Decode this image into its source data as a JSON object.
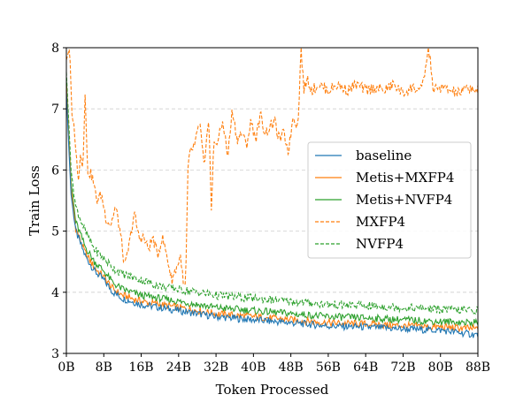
{
  "chart_data": {
    "type": "line",
    "title": "",
    "xlabel": "Token Processed",
    "ylabel": "Train Loss",
    "xlim": [
      0,
      88
    ],
    "ylim": [
      3,
      8
    ],
    "x_unit": "billion tokens",
    "x_ticks": [
      0,
      8,
      16,
      24,
      32,
      40,
      48,
      56,
      64,
      72,
      80,
      88
    ],
    "x_tick_labels": [
      "0B",
      "8B",
      "16B",
      "24B",
      "32B",
      "40B",
      "48B",
      "56B",
      "64B",
      "72B",
      "80B",
      "88B"
    ],
    "y_ticks": [
      3,
      4,
      5,
      6,
      7,
      8
    ],
    "y_tick_labels": [
      "3",
      "4",
      "5",
      "6",
      "7",
      "8"
    ],
    "grid": "horizontal dashed",
    "legend_position": "center-right",
    "series": [
      {
        "name": "baseline",
        "color": "#1f77b4",
        "style": "solid",
        "x": [
          0,
          0.5,
          1,
          2,
          3,
          4,
          6,
          8,
          10,
          12,
          16,
          20,
          24,
          28,
          32,
          40,
          48,
          56,
          64,
          72,
          80,
          88
        ],
        "values": [
          7.3,
          6.4,
          5.6,
          5.0,
          4.8,
          4.6,
          4.35,
          4.2,
          4.0,
          3.9,
          3.8,
          3.75,
          3.7,
          3.65,
          3.6,
          3.55,
          3.5,
          3.45,
          3.43,
          3.4,
          3.38,
          3.3
        ]
      },
      {
        "name": "Metis+MXFP4",
        "color": "#ff7f0e",
        "style": "solid",
        "x": [
          0,
          0.5,
          1,
          2,
          3,
          4,
          6,
          8,
          10,
          12,
          16,
          20,
          24,
          28,
          32,
          40,
          48,
          56,
          64,
          72,
          80,
          88
        ],
        "values": [
          7.4,
          6.5,
          5.7,
          5.05,
          4.85,
          4.65,
          4.4,
          4.25,
          4.05,
          3.95,
          3.85,
          3.8,
          3.75,
          3.7,
          3.65,
          3.6,
          3.55,
          3.5,
          3.48,
          3.45,
          3.43,
          3.4
        ]
      },
      {
        "name": "Metis+NVFP4",
        "color": "#2ca02c",
        "style": "solid",
        "x": [
          0,
          0.5,
          1,
          2,
          3,
          4,
          6,
          8,
          10,
          12,
          16,
          20,
          24,
          28,
          32,
          40,
          48,
          56,
          64,
          72,
          80,
          88
        ],
        "values": [
          7.5,
          6.6,
          5.8,
          5.15,
          4.95,
          4.75,
          4.5,
          4.35,
          4.15,
          4.05,
          3.95,
          3.9,
          3.85,
          3.8,
          3.75,
          3.7,
          3.65,
          3.6,
          3.58,
          3.55,
          3.52,
          3.5
        ]
      },
      {
        "name": "MXFP4",
        "color": "#ff7f0e",
        "style": "dashed",
        "x": [
          0,
          0.7,
          1.2,
          1.8,
          2.5,
          3.0,
          3.5,
          4.0,
          4.5,
          5.5,
          6.5,
          7.5,
          8.5,
          9.5,
          10.5,
          11.5,
          12.5,
          13.5,
          14.5,
          15.5,
          16.5,
          17.5,
          18.5,
          19.5,
          20.5,
          21.5,
          22.5,
          23.5,
          24.5,
          25.0,
          25.5,
          26.0,
          26.5,
          27.5,
          28.5,
          29.5,
          30.5,
          31.0,
          31.5,
          32.5,
          33.5,
          34.5,
          35.5,
          36.5,
          37.5,
          38.5,
          39.5,
          40.5,
          41.5,
          42.5,
          43.5,
          44.5,
          45.5,
          46.5,
          47.5,
          48.5,
          49.5,
          50.2,
          50.8,
          51.5,
          52.5,
          54,
          56,
          58,
          60,
          62,
          64,
          66,
          68,
          70,
          72,
          74,
          76,
          77.5,
          78.5,
          80,
          82,
          84,
          86,
          88
        ],
        "values": [
          7.8,
          8.0,
          6.9,
          6.6,
          5.8,
          6.3,
          6.0,
          7.3,
          6.0,
          5.9,
          5.5,
          5.6,
          5.2,
          5.1,
          5.4,
          5.0,
          4.4,
          4.8,
          5.3,
          4.9,
          4.9,
          4.7,
          4.9,
          4.6,
          4.9,
          4.6,
          4.2,
          4.4,
          4.6,
          4.1,
          4.1,
          6.0,
          6.3,
          6.4,
          6.8,
          6.0,
          6.9,
          5.3,
          6.4,
          6.5,
          6.8,
          6.2,
          7.0,
          6.5,
          6.6,
          6.4,
          6.8,
          6.5,
          6.9,
          6.6,
          6.7,
          6.8,
          6.5,
          6.6,
          6.3,
          6.9,
          6.7,
          8.0,
          7.3,
          7.5,
          7.3,
          7.4,
          7.3,
          7.4,
          7.3,
          7.4,
          7.3,
          7.35,
          7.3,
          7.4,
          7.25,
          7.35,
          7.3,
          8.0,
          7.3,
          7.35,
          7.3,
          7.25,
          7.35,
          7.3
        ]
      },
      {
        "name": "NVFP4",
        "color": "#2ca02c",
        "style": "dashed",
        "x": [
          0,
          0.5,
          1,
          2,
          3,
          4,
          6,
          8,
          10,
          12,
          16,
          20,
          24,
          28,
          32,
          40,
          48,
          56,
          64,
          72,
          80,
          88
        ],
        "values": [
          7.6,
          6.8,
          6.0,
          5.4,
          5.2,
          5.0,
          4.7,
          4.55,
          4.4,
          4.3,
          4.2,
          4.1,
          4.05,
          4.0,
          3.95,
          3.9,
          3.85,
          3.8,
          3.78,
          3.75,
          3.72,
          3.7
        ]
      }
    ]
  }
}
